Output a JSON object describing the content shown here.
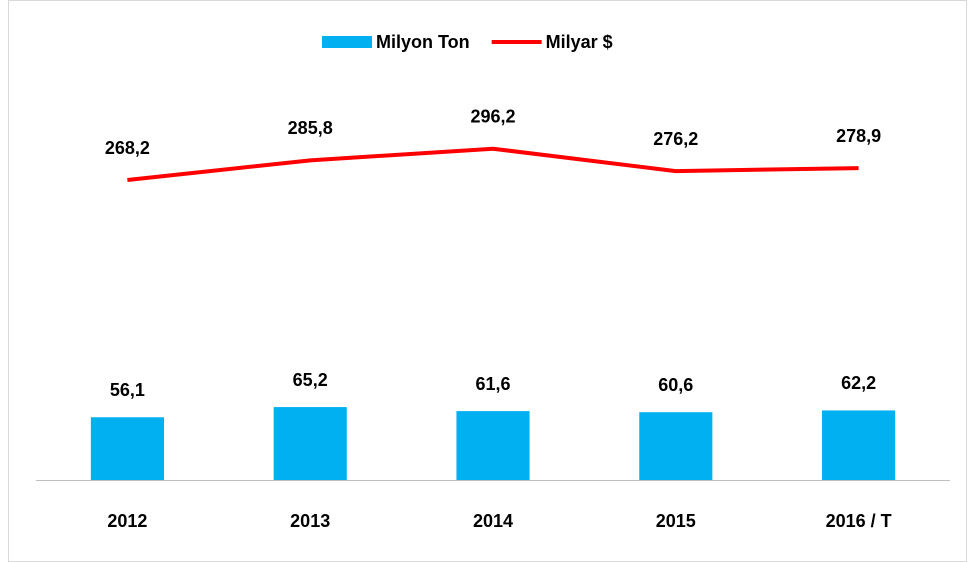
{
  "chart_data": {
    "type": "combo",
    "categories": [
      "2012",
      "2013",
      "2014",
      "2015",
      "2016 / T"
    ],
    "series": [
      {
        "name": "Milyon Ton",
        "type": "bar",
        "color": "#00b0f0",
        "values": [
          56.1,
          65.2,
          61.6,
          60.6,
          62.2
        ],
        "value_labels": [
          "56,1",
          "65,2",
          "61,6",
          "60,6",
          "62,2"
        ]
      },
      {
        "name": "Milyar $",
        "type": "line",
        "color": "#ff0000",
        "values": [
          268.2,
          285.8,
          296.2,
          276.2,
          278.9
        ],
        "value_labels": [
          "268,2",
          "285,8",
          "296,2",
          "276,2",
          "278,9"
        ]
      }
    ],
    "ylim": [
      0,
      380
    ],
    "legend": "top"
  }
}
